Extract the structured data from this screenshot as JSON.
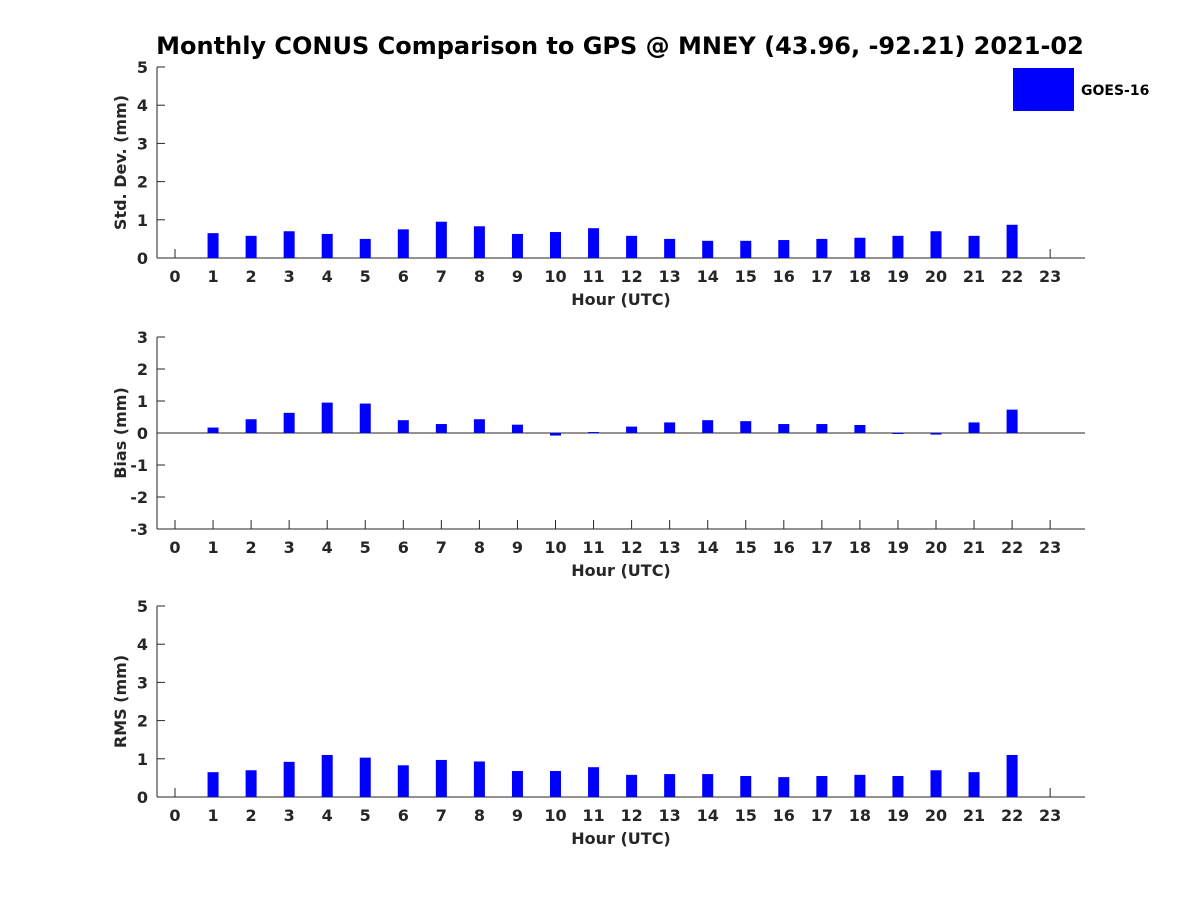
{
  "title": "Monthly CONUS Comparison to GPS @ MNEY (43.96, -92.21) 2021-02",
  "legend": {
    "label": "GOES-16",
    "color": "#0000ff",
    "placement": "top-right"
  },
  "chart_data": [
    {
      "type": "bar",
      "series_name": "GOES-16",
      "categories": [
        "0",
        "1",
        "2",
        "3",
        "4",
        "5",
        "6",
        "7",
        "8",
        "9",
        "10",
        "11",
        "12",
        "13",
        "14",
        "15",
        "16",
        "17",
        "18",
        "19",
        "20",
        "21",
        "22",
        "23"
      ],
      "values": [
        null,
        0.65,
        0.58,
        0.7,
        0.63,
        0.5,
        0.75,
        0.95,
        0.83,
        0.63,
        0.68,
        0.78,
        0.58,
        0.5,
        0.45,
        0.45,
        0.47,
        0.5,
        0.53,
        0.58,
        0.7,
        0.58,
        0.87,
        null
      ],
      "xlabel": "Hour (UTC)",
      "ylabel": "Std. Dev. (mm)",
      "ylim": [
        0,
        5
      ],
      "yticks": [
        "0",
        "1",
        "2",
        "3",
        "4",
        "5"
      ],
      "color": "#0000ff"
    },
    {
      "type": "bar",
      "series_name": "GOES-16",
      "categories": [
        "0",
        "1",
        "2",
        "3",
        "4",
        "5",
        "6",
        "7",
        "8",
        "9",
        "10",
        "11",
        "12",
        "13",
        "14",
        "15",
        "16",
        "17",
        "18",
        "19",
        "20",
        "21",
        "22",
        "23"
      ],
      "values": [
        null,
        0.17,
        0.43,
        0.63,
        0.95,
        0.92,
        0.4,
        0.28,
        0.43,
        0.26,
        -0.08,
        0.03,
        0.2,
        0.33,
        0.4,
        0.37,
        0.28,
        0.28,
        0.25,
        0.0,
        -0.05,
        0.33,
        0.73,
        null
      ],
      "xlabel": "Hour (UTC)",
      "ylabel": "Bias (mm)",
      "ylim": [
        -3,
        3
      ],
      "yticks": [
        "-3",
        "-2",
        "-1",
        "0",
        "1",
        "2",
        "3"
      ],
      "color": "#0000ff"
    },
    {
      "type": "bar",
      "series_name": "GOES-16",
      "categories": [
        "0",
        "1",
        "2",
        "3",
        "4",
        "5",
        "6",
        "7",
        "8",
        "9",
        "10",
        "11",
        "12",
        "13",
        "14",
        "15",
        "16",
        "17",
        "18",
        "19",
        "20",
        "21",
        "22",
        "23"
      ],
      "values": [
        null,
        0.65,
        0.7,
        0.92,
        1.1,
        1.03,
        0.83,
        0.97,
        0.93,
        0.68,
        0.68,
        0.78,
        0.58,
        0.6,
        0.6,
        0.55,
        0.52,
        0.55,
        0.58,
        0.55,
        0.7,
        0.65,
        1.1,
        null
      ],
      "xlabel": "Hour (UTC)",
      "ylabel": "RMS (mm)",
      "ylim": [
        0,
        5
      ],
      "yticks": [
        "0",
        "1",
        "2",
        "3",
        "4",
        "5"
      ],
      "color": "#0000ff"
    }
  ]
}
